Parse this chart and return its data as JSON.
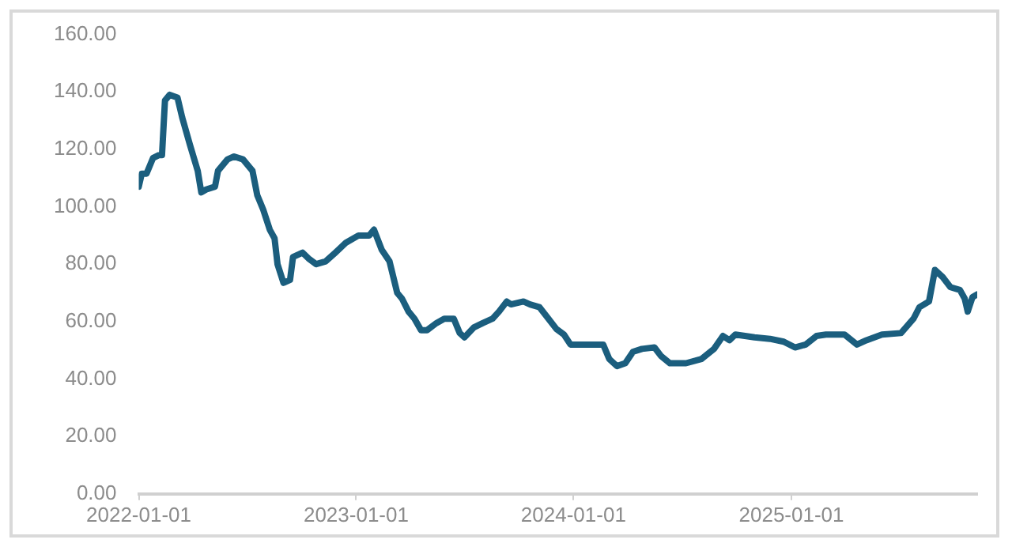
{
  "chart_data": {
    "type": "line",
    "x": [
      "2022-01-01",
      "2022-01-06",
      "2022-01-14",
      "2022-01-25",
      "2022-02-04",
      "2022-02-09",
      "2022-02-14",
      "2022-02-22",
      "2022-03-07",
      "2022-03-15",
      "2022-03-28",
      "2022-04-10",
      "2022-04-16",
      "2022-04-24",
      "2022-05-09",
      "2022-05-14",
      "2022-05-30",
      "2022-06-10",
      "2022-06-25",
      "2022-07-11",
      "2022-07-19",
      "2022-07-29",
      "2022-08-09",
      "2022-08-17",
      "2022-08-22",
      "2022-09-01",
      "2022-09-12",
      "2022-09-17",
      "2022-10-03",
      "2022-10-13",
      "2022-10-26",
      "2022-11-11",
      "2022-11-27",
      "2022-12-15",
      "2023-01-05",
      "2023-01-23",
      "2023-01-31",
      "2023-02-13",
      "2023-02-26",
      "2023-03-11",
      "2023-03-19",
      "2023-03-30",
      "2023-04-09",
      "2023-04-20",
      "2023-04-30",
      "2023-05-16",
      "2023-05-29",
      "2023-06-14",
      "2023-06-24",
      "2023-07-02",
      "2023-07-18",
      "2023-08-02",
      "2023-08-18",
      "2023-08-29",
      "2023-09-11",
      "2023-09-18",
      "2023-10-09",
      "2023-10-20",
      "2023-11-05",
      "2023-11-20",
      "2023-12-03",
      "2023-12-16",
      "2023-12-27",
      "2024-01-22",
      "2024-02-20",
      "2024-03-01",
      "2024-03-14",
      "2024-03-28",
      "2024-04-10",
      "2024-04-25",
      "2024-05-16",
      "2024-05-27",
      "2024-06-11",
      "2024-07-08",
      "2024-08-03",
      "2024-08-24",
      "2024-09-08",
      "2024-09-19",
      "2024-09-29",
      "2024-10-31",
      "2024-11-26",
      "2024-12-19",
      "2025-01-07",
      "2025-01-25",
      "2025-02-12",
      "2025-02-28",
      "2025-03-31",
      "2025-04-21",
      "2025-05-07",
      "2025-06-02",
      "2025-07-04",
      "2025-07-25",
      "2025-08-04",
      "2025-08-20",
      "2025-08-30",
      "2025-09-12",
      "2025-09-25",
      "2025-10-11",
      "2025-10-19",
      "2025-10-24",
      "2025-11-01",
      "2025-11-09"
    ],
    "series": [
      {
        "color": "#1b5e7e",
        "values": [
          107,
          111.5,
          111.5,
          117,
          118,
          118,
          137,
          139,
          138,
          131,
          121.5,
          112.5,
          105,
          106,
          107,
          112.5,
          116.5,
          117.5,
          116.5,
          112.5,
          104,
          99,
          92,
          89,
          80,
          73.5,
          74.5,
          82.5,
          84,
          82,
          80,
          81,
          84,
          87.5,
          90,
          90,
          92,
          85,
          81,
          70,
          68,
          63.5,
          61,
          57,
          57,
          59.5,
          61,
          61,
          56,
          54.5,
          58,
          59.5,
          61,
          63.5,
          67,
          66,
          67,
          66,
          65,
          61,
          57.5,
          55.5,
          52,
          52,
          52,
          47,
          44.5,
          45.5,
          49.5,
          50.5,
          51,
          48,
          45.5,
          45.5,
          47,
          50.5,
          55,
          53.5,
          55.5,
          54.5,
          54,
          53,
          51,
          52,
          55,
          55.5,
          55.5,
          52,
          53.5,
          55.5,
          56,
          61,
          65,
          67,
          78,
          75.5,
          72,
          71,
          68,
          63.5,
          68.5,
          69.5
        ]
      }
    ],
    "xlim": [
      "2022-01-01",
      "2025-11-09"
    ],
    "xticks": [
      "2022-01-01",
      "2023-01-01",
      "2024-01-01",
      "2025-01-01"
    ],
    "ylim": [
      0,
      160
    ],
    "yticks": [
      {
        "value": 0,
        "label": "0.00"
      },
      {
        "value": 20,
        "label": "20.00"
      },
      {
        "value": 40,
        "label": "40.00"
      },
      {
        "value": 60,
        "label": "60.00"
      },
      {
        "value": 80,
        "label": "80.00"
      },
      {
        "value": 100,
        "label": "100.00"
      },
      {
        "value": 120,
        "label": "120.00"
      },
      {
        "value": 140,
        "label": "140.00"
      },
      {
        "value": 160,
        "label": "160.00"
      }
    ],
    "grid": false,
    "legend": false,
    "marker": "none",
    "line_style": "solid"
  }
}
